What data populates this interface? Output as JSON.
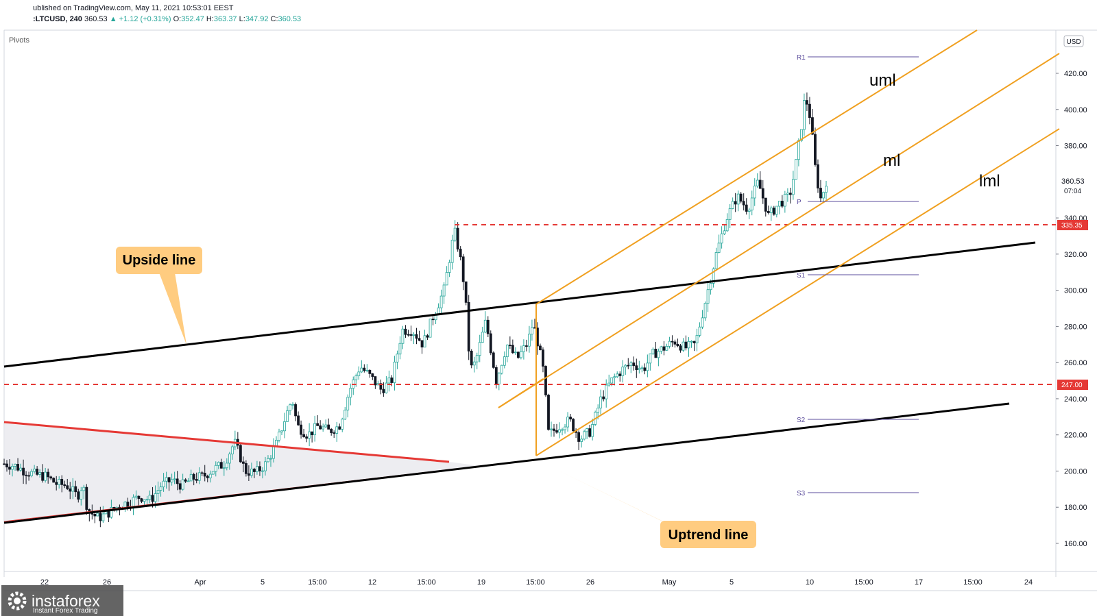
{
  "header": {
    "published": "ublished on TradingView.com, May 11, 2021 10:53:01 EEST",
    "symbol": ":LTCUSD, 240",
    "last": "360.53",
    "change": "+1.12 (+0.31%)",
    "o_label": "O:",
    "o": "352.47",
    "h_label": "H:",
    "h": "363.37",
    "l_label": "L:",
    "l": "347.92",
    "c_label": "C:",
    "c": "360.53"
  },
  "indicator_label": "Pivots",
  "currency": "USD",
  "price_tags": {
    "last_price": "360.53",
    "countdown": "07:04",
    "level1": "335.35",
    "level2": "247.00"
  },
  "annotations": {
    "upside_line": "Upside line",
    "uptrend_line": "Uptrend line",
    "uml": "uml",
    "ml": "ml",
    "lml": "lml"
  },
  "watermark": {
    "brand": "instaforex",
    "tagline": "Instant Forex Trading"
  },
  "colors": {
    "up": "#26a69a",
    "down": "#131722",
    "fork": "#f0a020",
    "resistance": "#e53935",
    "trend": "#000000",
    "pivot": "#5b4c9c",
    "callout": "#ffcc80"
  },
  "chart_data": {
    "type": "candlestick",
    "title": "",
    "ylim": [
      150,
      430
    ],
    "y_ticks": [
      "160.00",
      "180.00",
      "200.00",
      "220.00",
      "240.00",
      "260.00",
      "280.00",
      "300.00",
      "320.00",
      "340.00",
      "380.00",
      "400.00",
      "420.00"
    ],
    "x_ticks": [
      "22",
      "26",
      "Apr",
      "5",
      "15:00",
      "12",
      "15:00",
      "19",
      "15:00",
      "26",
      "May",
      "5",
      "10",
      "15:00",
      "17",
      "15:00",
      "24"
    ],
    "horizontal_levels": [
      {
        "label": "335.35",
        "value": 335.35
      },
      {
        "label": "247.00",
        "value": 247.0
      }
    ],
    "pivots": [
      {
        "label": "R1",
        "value": 428
      },
      {
        "label": "P",
        "value": 349
      },
      {
        "label": "S1",
        "value": 308
      },
      {
        "label": "S2",
        "value": 228
      },
      {
        "label": "S3",
        "value": 187
      }
    ],
    "close_path": [
      [
        0.0,
        204
      ],
      [
        0.01,
        203
      ],
      [
        0.02,
        200
      ],
      [
        0.03,
        198
      ],
      [
        0.04,
        197
      ],
      [
        0.05,
        193
      ],
      [
        0.06,
        192
      ],
      [
        0.07,
        186
      ],
      [
        0.075,
        193
      ],
      [
        0.08,
        178
      ],
      [
        0.09,
        174
      ],
      [
        0.1,
        177
      ],
      [
        0.11,
        181
      ],
      [
        0.12,
        183
      ],
      [
        0.13,
        186
      ],
      [
        0.14,
        184
      ],
      [
        0.15,
        192
      ],
      [
        0.16,
        195
      ],
      [
        0.17,
        192
      ],
      [
        0.18,
        196
      ],
      [
        0.19,
        197
      ],
      [
        0.2,
        201
      ],
      [
        0.21,
        204
      ],
      [
        0.22,
        216
      ],
      [
        0.225,
        209
      ],
      [
        0.23,
        200
      ],
      [
        0.24,
        199
      ],
      [
        0.25,
        204
      ],
      [
        0.26,
        215
      ],
      [
        0.27,
        232
      ],
      [
        0.275,
        240
      ],
      [
        0.28,
        225
      ],
      [
        0.29,
        220
      ],
      [
        0.3,
        225
      ],
      [
        0.31,
        222
      ],
      [
        0.32,
        225
      ],
      [
        0.33,
        245
      ],
      [
        0.34,
        258
      ],
      [
        0.35,
        252
      ],
      [
        0.36,
        245
      ],
      [
        0.37,
        250
      ],
      [
        0.38,
        278
      ],
      [
        0.39,
        278
      ],
      [
        0.4,
        270
      ],
      [
        0.41,
        286
      ],
      [
        0.42,
        300
      ],
      [
        0.43,
        333
      ],
      [
        0.435,
        320
      ],
      [
        0.44,
        300
      ],
      [
        0.445,
        256
      ],
      [
        0.45,
        260
      ],
      [
        0.46,
        283
      ],
      [
        0.47,
        250
      ],
      [
        0.48,
        270
      ],
      [
        0.49,
        262
      ],
      [
        0.5,
        271
      ],
      [
        0.505,
        282
      ],
      [
        0.51,
        270
      ],
      [
        0.515,
        255
      ],
      [
        0.52,
        220
      ],
      [
        0.53,
        225
      ],
      [
        0.54,
        228
      ],
      [
        0.55,
        218
      ],
      [
        0.56,
        222
      ],
      [
        0.57,
        240
      ],
      [
        0.58,
        250
      ],
      [
        0.59,
        256
      ],
      [
        0.6,
        260
      ],
      [
        0.61,
        256
      ],
      [
        0.62,
        265
      ],
      [
        0.63,
        268
      ],
      [
        0.64,
        272
      ],
      [
        0.65,
        268
      ],
      [
        0.66,
        270
      ],
      [
        0.67,
        295
      ],
      [
        0.68,
        320
      ],
      [
        0.69,
        340
      ],
      [
        0.7,
        352
      ],
      [
        0.71,
        345
      ],
      [
        0.72,
        360
      ],
      [
        0.73,
        341
      ],
      [
        0.74,
        348
      ],
      [
        0.75,
        352
      ],
      [
        0.755,
        366
      ],
      [
        0.76,
        385
      ],
      [
        0.765,
        408
      ],
      [
        0.77,
        395
      ],
      [
        0.775,
        365
      ],
      [
        0.78,
        350
      ],
      [
        0.785,
        360.5
      ]
    ]
  }
}
